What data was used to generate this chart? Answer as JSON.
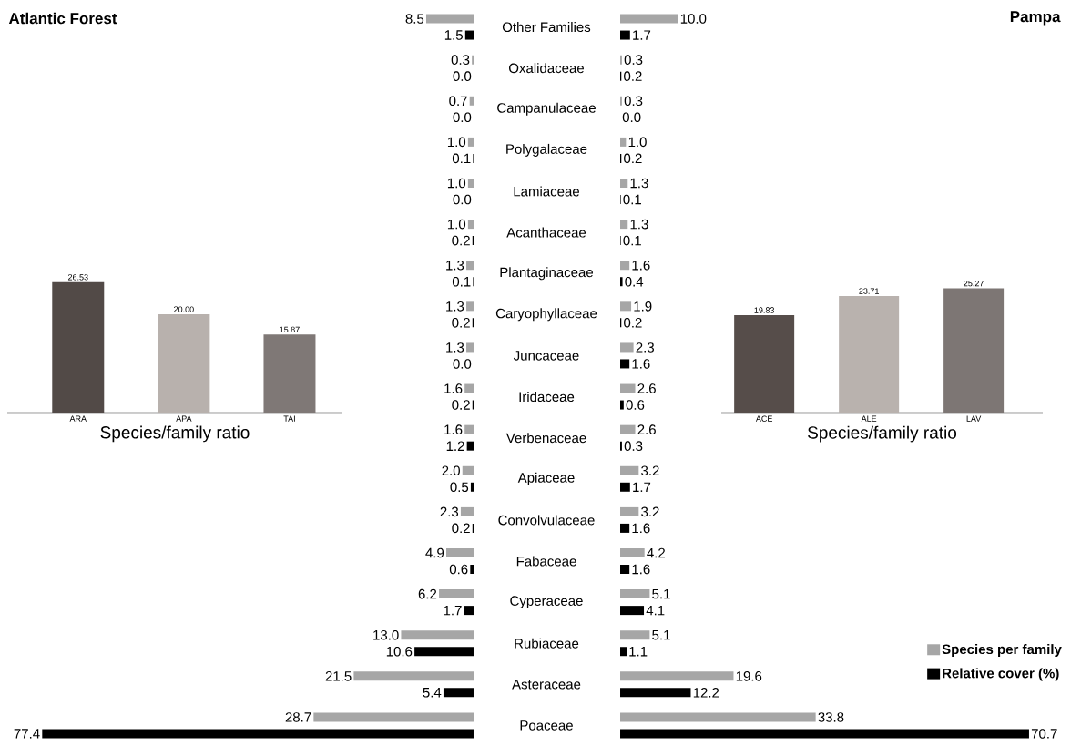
{
  "chart_data": [
    {
      "type": "bar",
      "title": "Atlantic Forest",
      "orientation": "horizontal",
      "tick_labels": "y",
      "categories": [
        "Other Families",
        "Oxalidaceae",
        "Campanulaceae",
        "Polygalaceae",
        "Lamiaceae",
        "Acanthaceae",
        "Plantaginaceae",
        "Caryophyllaceae",
        "Juncaceae",
        "Iridaceae",
        "Verbenaceae",
        "Apiaceae",
        "Convolvulaceae",
        "Fabaceae",
        "Cyperaceae",
        "Rubiaceae",
        "Asteraceae",
        "Poaceae"
      ],
      "series": [
        {
          "color": "#a6a6a6",
          "values": [
            8.5,
            0.3,
            0.7,
            1.0,
            1.0,
            1.0,
            1.3,
            1.3,
            1.3,
            1.6,
            1.6,
            2.0,
            2.3,
            4.9,
            6.2,
            13.0,
            21.5,
            28.7
          ],
          "value_labels": [
            "8.5",
            "0.3",
            "0.7",
            "1.0",
            "1.0",
            "1.0",
            "1.3",
            "1.3",
            "1.3",
            "1.6",
            "1.6",
            "2.0",
            "2.3",
            "4.9",
            "6.2",
            "13.0",
            "21.5",
            "28.7"
          ]
        },
        {
          "color": "#000000",
          "values": [
            1.5,
            0.0,
            0.0,
            0.1,
            0.0,
            0.2,
            0.1,
            0.2,
            0.0,
            0.2,
            1.2,
            0.5,
            0.2,
            0.6,
            1.7,
            10.6,
            5.4,
            77.4
          ],
          "value_labels": [
            "1.5",
            "0.0",
            "0.0",
            "0.1",
            "0.0",
            "0.2",
            "0.1",
            "0.2",
            "0.0",
            "0.2",
            "1.2",
            "0.5",
            "0.2",
            "0.6",
            "1.7",
            "10.6",
            "5.4",
            "77.4"
          ]
        }
      ]
    },
    {
      "type": "bar",
      "xlabel": "Species/family ratio",
      "tick_labels": "x",
      "categories": [
        "ARA",
        "APA",
        "TAI"
      ],
      "values": [
        26.53,
        20.0,
        15.87
      ],
      "value_labels": [
        "26.53",
        "20.00",
        "15.87"
      ],
      "colors": [
        "#524a47",
        "#b8b1ad",
        "#7f7876"
      ]
    },
    {
      "type": "bar",
      "title": "Pampa",
      "orientation": "horizontal",
      "tick_labels": false,
      "legend": "bottom right",
      "categories": [
        null,
        null,
        null,
        null,
        null,
        null,
        null,
        null,
        null,
        null,
        null,
        null,
        null,
        null,
        null,
        null,
        null,
        null
      ],
      "series": [
        {
          "name": "Species per family",
          "color": "#a6a6a6",
          "values": [
            10.0,
            0.3,
            0.3,
            1.0,
            1.3,
            1.3,
            1.6,
            1.9,
            2.3,
            2.6,
            2.6,
            3.2,
            3.2,
            4.2,
            5.1,
            5.1,
            19.6,
            33.8
          ],
          "value_labels": [
            "10.0",
            "0.3",
            "0.3",
            "1.0",
            "1.3",
            "1.3",
            "1.6",
            "1.9",
            "2.3",
            "2.6",
            "2.6",
            "3.2",
            "3.2",
            "4.2",
            "5.1",
            "5.1",
            "19.6",
            "33.8"
          ]
        },
        {
          "name": "Relative cover (%)",
          "color": "#000000",
          "values": [
            1.7,
            0.2,
            0.0,
            0.2,
            0.1,
            0.1,
            0.4,
            0.2,
            1.6,
            0.6,
            0.3,
            1.7,
            1.6,
            1.6,
            4.1,
            1.1,
            12.2,
            70.7
          ],
          "value_labels": [
            "1.7",
            "0.2",
            "0.0",
            "0.2",
            "0.1",
            "0.1",
            "0.4",
            "0.2",
            "1.6",
            "0.6",
            "0.3",
            "1.7",
            "1.6",
            "1.6",
            "4.1",
            "1.1",
            "12.2",
            "70.7"
          ]
        }
      ]
    },
    {
      "type": "bar",
      "xlabel": "Species/family ratio",
      "tick_labels": "x",
      "categories": [
        "ACE",
        "ALE",
        "LAV"
      ],
      "values": [
        19.83,
        23.71,
        25.27
      ],
      "value_labels": [
        "19.83",
        "23.71",
        "25.27"
      ],
      "colors": [
        "#564d4a",
        "#b9b2ae",
        "#7d7674"
      ]
    }
  ]
}
